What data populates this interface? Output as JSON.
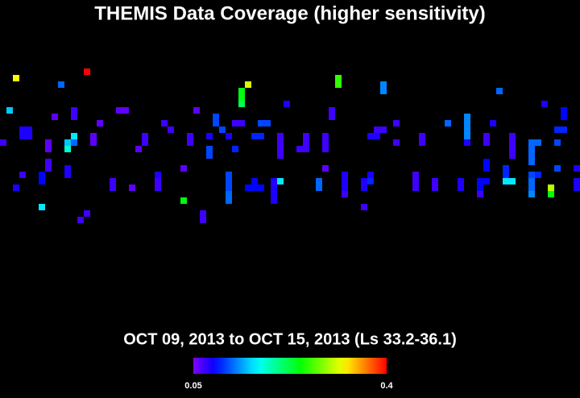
{
  "chart_data": {
    "type": "heatmap",
    "title": "THEMIS Data Coverage (higher sensitivity)",
    "subtitle": "OCT 09, 2013 to OCT 15, 2013 (Ls 33.2-36.1)",
    "colormap": "rainbow",
    "zlim": [
      0.05,
      0.4
    ],
    "zticks": [
      0.05,
      0.4
    ],
    "cells": [
      [
        2,
        1,
        0.32
      ],
      [
        13,
        0,
        0.4
      ],
      [
        9,
        2,
        0.12
      ],
      [
        52,
        1,
        0.26
      ],
      [
        52,
        2,
        0.26
      ],
      [
        38,
        2,
        0.31
      ],
      [
        37,
        3,
        0.24
      ],
      [
        37,
        4,
        0.24
      ],
      [
        37,
        5,
        0.22
      ],
      [
        59,
        2,
        0.13
      ],
      [
        59,
        3,
        0.13
      ],
      [
        77,
        3,
        0.12
      ],
      [
        1,
        6,
        0.15
      ],
      [
        11,
        6,
        0.07
      ],
      [
        11,
        7,
        0.07
      ],
      [
        18,
        6,
        0.06
      ],
      [
        19,
        6,
        0.06
      ],
      [
        30,
        6,
        0.06
      ],
      [
        44,
        5,
        0.08
      ],
      [
        51,
        6,
        0.07
      ],
      [
        51,
        7,
        0.07
      ],
      [
        84,
        5,
        0.08
      ],
      [
        87,
        6,
        0.09
      ],
      [
        87,
        7,
        0.09
      ],
      [
        33,
        7,
        0.11
      ],
      [
        33,
        8,
        0.11
      ],
      [
        34,
        9,
        0.11
      ],
      [
        8,
        7,
        0.06
      ],
      [
        15,
        8,
        0.06
      ],
      [
        25,
        8,
        0.07
      ],
      [
        26,
        9,
        0.07
      ],
      [
        36,
        8,
        0.07
      ],
      [
        37,
        8,
        0.07
      ],
      [
        40,
        8,
        0.11
      ],
      [
        41,
        8,
        0.11
      ],
      [
        61,
        8,
        0.07
      ],
      [
        58,
        9,
        0.07
      ],
      [
        59,
        9,
        0.07
      ],
      [
        69,
        8,
        0.12
      ],
      [
        72,
        7,
        0.13
      ],
      [
        72,
        8,
        0.13
      ],
      [
        72,
        9,
        0.13
      ],
      [
        72,
        10,
        0.13
      ],
      [
        72,
        11,
        0.08
      ],
      [
        76,
        8,
        0.08
      ],
      [
        86,
        9,
        0.1
      ],
      [
        87,
        9,
        0.1
      ],
      [
        3,
        9,
        0.08
      ],
      [
        4,
        9,
        0.08
      ],
      [
        3,
        10,
        0.08
      ],
      [
        4,
        10,
        0.08
      ],
      [
        0,
        11,
        0.07
      ],
      [
        11,
        10,
        0.16
      ],
      [
        11,
        11,
        0.12
      ],
      [
        14,
        10,
        0.06
      ],
      [
        14,
        11,
        0.06
      ],
      [
        22,
        10,
        0.07
      ],
      [
        22,
        11,
        0.07
      ],
      [
        29,
        10,
        0.07
      ],
      [
        29,
        11,
        0.07
      ],
      [
        32,
        10,
        0.08
      ],
      [
        35,
        10,
        0.08
      ],
      [
        39,
        10,
        0.1
      ],
      [
        40,
        10,
        0.1
      ],
      [
        43,
        10,
        0.07
      ],
      [
        43,
        11,
        0.07
      ],
      [
        43,
        12,
        0.07
      ],
      [
        43,
        13,
        0.07
      ],
      [
        47,
        10,
        0.07
      ],
      [
        47,
        11,
        0.07
      ],
      [
        46,
        12,
        0.07
      ],
      [
        47,
        12,
        0.07
      ],
      [
        50,
        10,
        0.07
      ],
      [
        50,
        11,
        0.07
      ],
      [
        50,
        12,
        0.07
      ],
      [
        57,
        10,
        0.08
      ],
      [
        58,
        10,
        0.08
      ],
      [
        61,
        11,
        0.07
      ],
      [
        65,
        10,
        0.07
      ],
      [
        65,
        11,
        0.07
      ],
      [
        75,
        10,
        0.07
      ],
      [
        75,
        11,
        0.07
      ],
      [
        79,
        10,
        0.07
      ],
      [
        79,
        11,
        0.07
      ],
      [
        79,
        12,
        0.07
      ],
      [
        79,
        13,
        0.07
      ],
      [
        82,
        11,
        0.12
      ],
      [
        83,
        11,
        0.12
      ],
      [
        82,
        12,
        0.12
      ],
      [
        82,
        13,
        0.12
      ],
      [
        82,
        14,
        0.12
      ],
      [
        86,
        11,
        0.11
      ],
      [
        7,
        11,
        0.06
      ],
      [
        7,
        12,
        0.06
      ],
      [
        10,
        11,
        0.15
      ],
      [
        10,
        12,
        0.18
      ],
      [
        21,
        12,
        0.06
      ],
      [
        32,
        12,
        0.11
      ],
      [
        32,
        13,
        0.11
      ],
      [
        36,
        12,
        0.1
      ],
      [
        7,
        14,
        0.07
      ],
      [
        7,
        15,
        0.07
      ],
      [
        10,
        15,
        0.08
      ],
      [
        10,
        16,
        0.08
      ],
      [
        28,
        15,
        0.06
      ],
      [
        50,
        15,
        0.06
      ],
      [
        75,
        14,
        0.09
      ],
      [
        75,
        15,
        0.09
      ],
      [
        78,
        15,
        0.1
      ],
      [
        78,
        16,
        0.1
      ],
      [
        86,
        15,
        0.11
      ],
      [
        89,
        15,
        0.08
      ],
      [
        82,
        16,
        0.11
      ],
      [
        83,
        16,
        0.1
      ],
      [
        3,
        16,
        0.07
      ],
      [
        6,
        16,
        0.09
      ],
      [
        6,
        17,
        0.09
      ],
      [
        24,
        17,
        0.07
      ],
      [
        24,
        16,
        0.08
      ],
      [
        35,
        16,
        0.11
      ],
      [
        35,
        17,
        0.11
      ],
      [
        35,
        18,
        0.11
      ],
      [
        35,
        19,
        0.12
      ],
      [
        35,
        20,
        0.12
      ],
      [
        38,
        18,
        0.09
      ],
      [
        39,
        18,
        0.09
      ],
      [
        40,
        18,
        0.09
      ],
      [
        39,
        17,
        0.09
      ],
      [
        42,
        17,
        0.08
      ],
      [
        42,
        18,
        0.08
      ],
      [
        42,
        19,
        0.08
      ],
      [
        42,
        20,
        0.08
      ],
      [
        43,
        17,
        0.16
      ],
      [
        49,
        17,
        0.12
      ],
      [
        49,
        18,
        0.12
      ],
      [
        53,
        16,
        0.08
      ],
      [
        53,
        17,
        0.08
      ],
      [
        53,
        18,
        0.08
      ],
      [
        56,
        17,
        0.08
      ],
      [
        56,
        18,
        0.08
      ],
      [
        57,
        16,
        0.08
      ],
      [
        57,
        17,
        0.1
      ],
      [
        64,
        16,
        0.07
      ],
      [
        64,
        17,
        0.07
      ],
      [
        64,
        18,
        0.07
      ],
      [
        67,
        17,
        0.07
      ],
      [
        67,
        18,
        0.07
      ],
      [
        71,
        17,
        0.08
      ],
      [
        71,
        18,
        0.08
      ],
      [
        74,
        17,
        0.09
      ],
      [
        75,
        17,
        0.09
      ],
      [
        74,
        18,
        0.09
      ],
      [
        74,
        19,
        0.07
      ],
      [
        78,
        17,
        0.16
      ],
      [
        79,
        17,
        0.16
      ],
      [
        82,
        17,
        0.12
      ],
      [
        82,
        18,
        0.12
      ],
      [
        82,
        19,
        0.13
      ],
      [
        85,
        18,
        0.3
      ],
      [
        85,
        19,
        0.24
      ],
      [
        89,
        17,
        0.08
      ],
      [
        89,
        18,
        0.08
      ],
      [
        2,
        18,
        0.08
      ],
      [
        17,
        17,
        0.07
      ],
      [
        17,
        18,
        0.07
      ],
      [
        20,
        18,
        0.06
      ],
      [
        24,
        18,
        0.07
      ],
      [
        28,
        20,
        0.24
      ],
      [
        6,
        21,
        0.16
      ],
      [
        13,
        22,
        0.07
      ],
      [
        12,
        23,
        0.07
      ],
      [
        31,
        22,
        0.07
      ],
      [
        31,
        23,
        0.07
      ],
      [
        56,
        21,
        0.07
      ],
      [
        53,
        19,
        0.07
      ]
    ]
  }
}
